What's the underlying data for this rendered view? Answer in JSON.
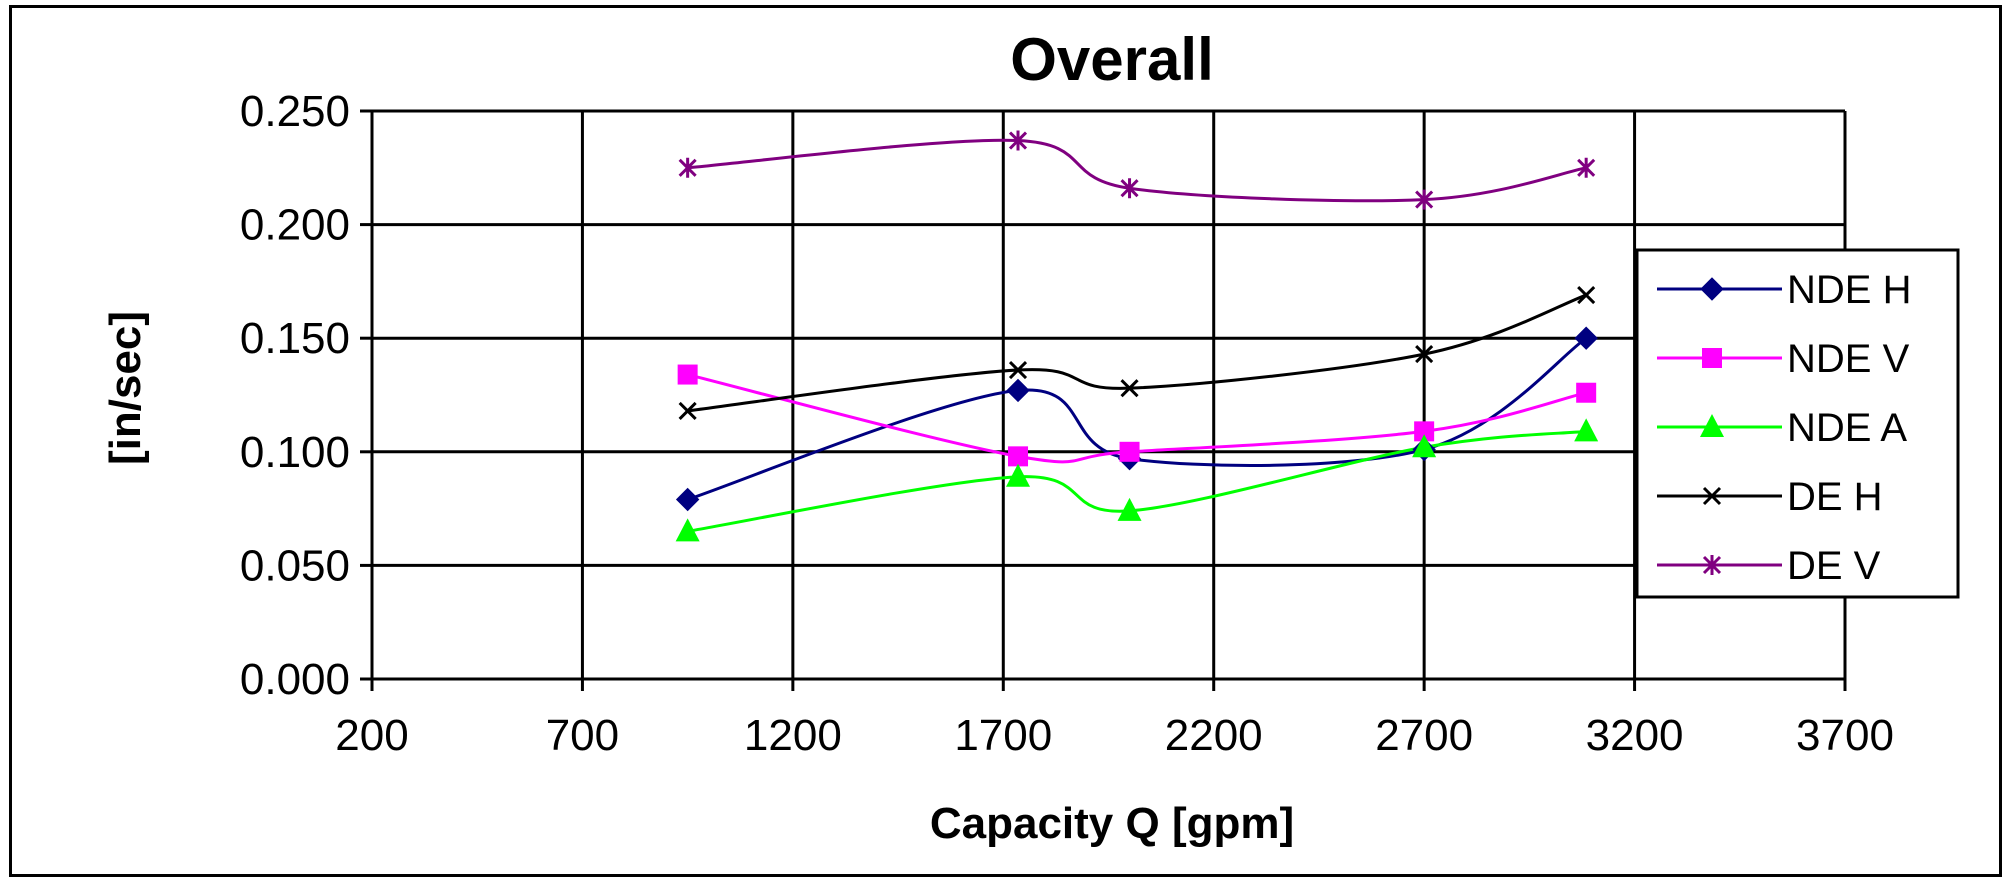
{
  "chart_data": {
    "type": "line",
    "title": "Overall",
    "xlabel": "Capacity Q [gpm]",
    "ylabel": "[in/sec]",
    "xlim": [
      200,
      3700
    ],
    "ylim": [
      0,
      0.25
    ],
    "x_ticks": [
      "200",
      "700",
      "1200",
      "1700",
      "2200",
      "2700",
      "3200",
      "3700"
    ],
    "y_ticks": [
      "0.000",
      "0.050",
      "0.100",
      "0.150",
      "0.200",
      "0.250"
    ],
    "grid": true,
    "legend_position": "right",
    "smoothed": true,
    "x": [
      950,
      1735,
      2000,
      2700,
      3085
    ],
    "series": [
      {
        "name": "NDE H",
        "color": "#000080",
        "marker": "diamond",
        "values": [
          0.079,
          0.127,
          0.097,
          0.101,
          0.15
        ]
      },
      {
        "name": "NDE V",
        "color": "#FF00FF",
        "marker": "square",
        "values": [
          0.134,
          0.098,
          0.1,
          0.109,
          0.126
        ]
      },
      {
        "name": "NDE A",
        "color": "#00FF00",
        "marker": "triangle",
        "values": [
          0.065,
          0.089,
          0.074,
          0.102,
          0.109
        ]
      },
      {
        "name": "DE H",
        "color": "#000000",
        "marker": "x",
        "values": [
          0.118,
          0.136,
          0.128,
          0.143,
          0.169
        ]
      },
      {
        "name": "DE V",
        "color": "#800080",
        "marker": "asterisk",
        "values": [
          0.225,
          0.237,
          0.216,
          0.211,
          0.225
        ]
      }
    ]
  }
}
